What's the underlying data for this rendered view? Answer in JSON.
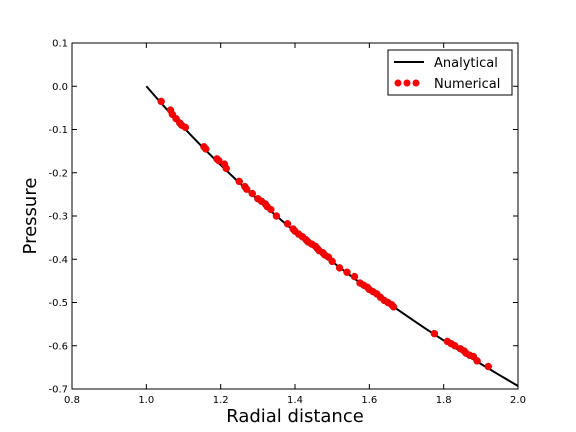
{
  "chart_data": {
    "type": "scatter",
    "xlabel": "Radial distance",
    "ylabel": "Pressure",
    "xlim": [
      0.8,
      2.0
    ],
    "ylim": [
      -0.7,
      0.1
    ],
    "xticks": [
      "0.8",
      "1.0",
      "1.2",
      "1.4",
      "1.6",
      "1.8",
      "2.0"
    ],
    "yticks": [
      "0.1",
      "0.0",
      "-0.1",
      "-0.2",
      "-0.3",
      "-0.4",
      "-0.5",
      "-0.6",
      "-0.7"
    ],
    "grid": false,
    "legend_position": "top-right",
    "series": [
      {
        "name": "Analytical",
        "kind": "line",
        "color": "#000000",
        "x": [
          1.0,
          1.05,
          1.1,
          1.15,
          1.2,
          1.25,
          1.3,
          1.35,
          1.4,
          1.45,
          1.5,
          1.55,
          1.6,
          1.65,
          1.7,
          1.75,
          1.8,
          1.85,
          1.9,
          1.95,
          2.0
        ],
        "y": [
          0.0,
          -0.0488,
          -0.0953,
          -0.1398,
          -0.1823,
          -0.2231,
          -0.2624,
          -0.3001,
          -0.3365,
          -0.3716,
          -0.4055,
          -0.4383,
          -0.47,
          -0.5008,
          -0.5306,
          -0.5596,
          -0.5878,
          -0.6152,
          -0.6419,
          -0.6678,
          -0.6931
        ]
      },
      {
        "name": "Numerical",
        "kind": "scatter",
        "color": "#ff0000",
        "x": [
          1.04,
          1.065,
          1.07,
          1.08,
          1.09,
          1.095,
          1.105,
          1.155,
          1.16,
          1.19,
          1.195,
          1.21,
          1.215,
          1.25,
          1.265,
          1.27,
          1.285,
          1.3,
          1.31,
          1.32,
          1.325,
          1.335,
          1.35,
          1.38,
          1.395,
          1.4,
          1.41,
          1.42,
          1.43,
          1.435,
          1.445,
          1.455,
          1.46,
          1.465,
          1.475,
          1.48,
          1.49,
          1.5,
          1.52,
          1.54,
          1.56,
          1.575,
          1.585,
          1.595,
          1.6,
          1.61,
          1.62,
          1.63,
          1.64,
          1.65,
          1.66,
          1.665,
          1.775,
          1.81,
          1.82,
          1.83,
          1.845,
          1.855,
          1.86,
          1.87,
          1.88,
          1.89,
          1.92
        ],
        "y": [
          -0.035,
          -0.055,
          -0.065,
          -0.075,
          -0.085,
          -0.09,
          -0.095,
          -0.14,
          -0.145,
          -0.168,
          -0.172,
          -0.18,
          -0.19,
          -0.22,
          -0.232,
          -0.238,
          -0.248,
          -0.26,
          -0.266,
          -0.272,
          -0.278,
          -0.285,
          -0.3,
          -0.318,
          -0.33,
          -0.335,
          -0.342,
          -0.348,
          -0.355,
          -0.36,
          -0.365,
          -0.37,
          -0.375,
          -0.38,
          -0.385,
          -0.39,
          -0.395,
          -0.405,
          -0.42,
          -0.43,
          -0.44,
          -0.455,
          -0.46,
          -0.465,
          -0.47,
          -0.475,
          -0.48,
          -0.488,
          -0.495,
          -0.5,
          -0.505,
          -0.51,
          -0.572,
          -0.59,
          -0.595,
          -0.6,
          -0.607,
          -0.612,
          -0.617,
          -0.622,
          -0.625,
          -0.635,
          -0.648
        ]
      }
    ]
  }
}
